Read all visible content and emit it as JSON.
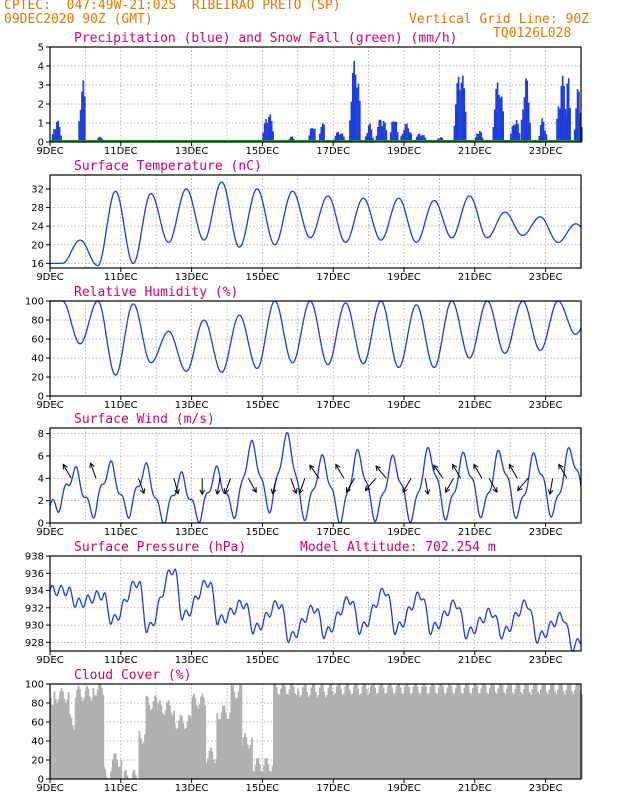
{
  "header": {
    "line1": "CPTEC:  047:49W-21:02S  RIBEIRAO PRETO (SP)",
    "line2_left": "09DEC2020 90Z (GMT)",
    "line2_right": "Vertical Grid Line: 90Z",
    "line3_right": "TQ0126L028"
  },
  "colors": {
    "blue": "#1c3cdc",
    "green": "#00a000",
    "gray": "#b0b0b0",
    "title": "#d6006e",
    "header": "#e07800"
  },
  "chart_data": [
    {
      "id": "precip",
      "type": "bar",
      "title": "Precipitation (blue) and Snow Fall (green) (mm/h)",
      "x_ticks": [
        "9DEC",
        "11DEC",
        "13DEC",
        "15DEC",
        "17DEC",
        "19DEC",
        "21DEC",
        "23DEC"
      ],
      "x_range_days": [
        0,
        15
      ],
      "ylim": [
        0,
        5
      ],
      "y_ticks": [
        "0",
        "1",
        "2",
        "3",
        "4",
        "5"
      ],
      "bursts": [
        [
          0.05,
          0.3,
          1.2
        ],
        [
          0.8,
          1.0,
          3.4
        ],
        [
          1.3,
          1.5,
          0.3
        ],
        [
          6.0,
          6.3,
          1.6
        ],
        [
          6.7,
          6.9,
          0.3
        ],
        [
          7.3,
          7.5,
          1.0
        ],
        [
          7.6,
          7.75,
          1.3
        ],
        [
          8.0,
          8.3,
          0.6
        ],
        [
          8.45,
          8.75,
          4.5
        ],
        [
          8.9,
          9.1,
          1.0
        ],
        [
          9.2,
          9.5,
          1.4
        ],
        [
          9.6,
          9.8,
          1.5
        ],
        [
          9.9,
          10.2,
          1.0
        ],
        [
          10.3,
          10.6,
          0.5
        ],
        [
          10.9,
          11.1,
          0.3
        ],
        [
          11.4,
          11.75,
          4.0
        ],
        [
          12.0,
          12.2,
          0.7
        ],
        [
          12.5,
          12.8,
          3.4
        ],
        [
          13.0,
          13.25,
          1.3
        ],
        [
          13.3,
          13.55,
          3.5
        ],
        [
          13.8,
          14.0,
          1.3
        ],
        [
          14.3,
          14.6,
          3.5
        ],
        [
          14.8,
          15.0,
          2.9
        ],
        [
          14.55,
          14.7,
          3.7
        ]
      ],
      "snow_line": 0
    },
    {
      "id": "temp",
      "type": "line",
      "title": "Surface Temperature (nC)",
      "x_ticks": [
        "9DEC",
        "11DEC",
        "13DEC",
        "15DEC",
        "17DEC",
        "19DEC",
        "21DEC",
        "23DEC"
      ],
      "ylim": [
        15,
        35
      ],
      "y_ticks": [
        "16",
        "20",
        "24",
        "28",
        "32"
      ],
      "y_tick_vals": [
        16,
        20,
        24,
        28,
        32
      ],
      "daily": [
        [
          16,
          21
        ],
        [
          15.5,
          31.5
        ],
        [
          16,
          31
        ],
        [
          20.5,
          32
        ],
        [
          21,
          33.5
        ],
        [
          19.5,
          32
        ],
        [
          20,
          31.5
        ],
        [
          21.5,
          30.5
        ],
        [
          20.5,
          30
        ],
        [
          21,
          30
        ],
        [
          20.5,
          29.5
        ],
        [
          21.5,
          30.5
        ],
        [
          21.5,
          27
        ],
        [
          22,
          26
        ],
        [
          20.5,
          24.5
        ],
        [
          21,
          23
        ]
      ]
    },
    {
      "id": "rh",
      "type": "line",
      "title": "Relative Humidity (%)",
      "x_ticks": [
        "9DEC",
        "11DEC",
        "13DEC",
        "15DEC",
        "17DEC",
        "19DEC",
        "21DEC",
        "23DEC"
      ],
      "ylim": [
        0,
        100
      ],
      "y_ticks": [
        "0",
        "20",
        "40",
        "60",
        "80",
        "100"
      ],
      "y_tick_vals": [
        0,
        20,
        40,
        60,
        80,
        100
      ],
      "daily": [
        [
          55,
          100
        ],
        [
          22,
          100
        ],
        [
          35,
          97
        ],
        [
          26,
          68
        ],
        [
          25,
          80
        ],
        [
          29,
          85
        ],
        [
          35,
          100
        ],
        [
          33,
          100
        ],
        [
          34,
          98
        ],
        [
          30,
          100
        ],
        [
          30,
          96
        ],
        [
          40,
          100
        ],
        [
          45,
          100
        ],
        [
          48,
          100
        ],
        [
          65,
          100
        ],
        [
          70,
          98
        ]
      ]
    },
    {
      "id": "wind",
      "type": "line",
      "title": "Surface Wind (m/s)",
      "x_ticks": [
        "9DEC",
        "11DEC",
        "13DEC",
        "15DEC",
        "17DEC",
        "19DEC",
        "21DEC",
        "23DEC"
      ],
      "ylim": [
        0,
        8.5
      ],
      "y_ticks": [
        "0",
        "2",
        "4",
        "6",
        "8"
      ],
      "y_tick_vals": [
        0,
        2,
        4,
        6,
        8
      ],
      "daily": [
        [
          1.5,
          4.5
        ],
        [
          1,
          5
        ],
        [
          1,
          4.8
        ],
        [
          0.4,
          4
        ],
        [
          0.6,
          4.5
        ],
        [
          1,
          6.8
        ],
        [
          1.5,
          7.5
        ],
        [
          0.8,
          5.5
        ],
        [
          0.5,
          6
        ],
        [
          0.7,
          5.5
        ],
        [
          0.6,
          6.2
        ],
        [
          0.8,
          5.8
        ],
        [
          1,
          6
        ],
        [
          0.9,
          5.8
        ],
        [
          1,
          6.3
        ],
        [
          1,
          5.8
        ]
      ],
      "arrows": [
        [
          0.6,
          -150
        ],
        [
          1.3,
          -160
        ],
        [
          2.5,
          20
        ],
        [
          3.5,
          15
        ],
        [
          4.3,
          0
        ],
        [
          4.8,
          -10
        ],
        [
          5.1,
          -20
        ],
        [
          5.6,
          30
        ],
        [
          6.4,
          -15
        ],
        [
          6.8,
          20
        ],
        [
          7.2,
          -20
        ],
        [
          7.6,
          -145
        ],
        [
          8.3,
          -150
        ],
        [
          8.6,
          -30
        ],
        [
          9.2,
          -40
        ],
        [
          9.5,
          -140
        ],
        [
          10.2,
          -30
        ],
        [
          10.6,
          10
        ],
        [
          11.1,
          -145
        ],
        [
          11.4,
          -30
        ],
        [
          11.6,
          -150
        ],
        [
          12.2,
          -150
        ],
        [
          12.4,
          30
        ],
        [
          13.2,
          -150
        ],
        [
          13.5,
          -40
        ],
        [
          14.2,
          -10
        ],
        [
          14.6,
          -150
        ]
      ]
    },
    {
      "id": "pres",
      "type": "line",
      "title": "Surface Pressure (hPa)",
      "subtitle": "Model Altitude: 702.254 m",
      "x_ticks": [
        "9DEC",
        "11DEC",
        "13DEC",
        "15DEC",
        "17DEC",
        "19DEC",
        "21DEC",
        "23DEC"
      ],
      "ylim": [
        927,
        938
      ],
      "y_ticks": [
        "928",
        "930",
        "932",
        "934",
        "936",
        "938"
      ],
      "y_tick_vals": [
        928,
        930,
        932,
        934,
        936,
        938
      ],
      "daily": [
        [
          932.5,
          934
        ],
        [
          930.5,
          933.5
        ],
        [
          929.5,
          935
        ],
        [
          931,
          936.5
        ],
        [
          930.5,
          935
        ],
        [
          929.5,
          932.5
        ],
        [
          928.5,
          932.5
        ],
        [
          929,
          932
        ],
        [
          929.5,
          933
        ],
        [
          929.5,
          934
        ],
        [
          929.5,
          933.5
        ],
        [
          929,
          932.5
        ],
        [
          929,
          931.5
        ],
        [
          928.5,
          932.5
        ],
        [
          927.5,
          931
        ],
        [
          927,
          931
        ]
      ]
    },
    {
      "id": "cloud",
      "type": "area",
      "title": "Cloud Cover (%)",
      "x_ticks": [
        "9DEC",
        "11DEC",
        "13DEC",
        "15DEC",
        "17DEC",
        "19DEC",
        "21DEC",
        "23DEC"
      ],
      "ylim": [
        0,
        100
      ],
      "y_ticks": [
        "0",
        "20",
        "40",
        "60",
        "80",
        "100"
      ],
      "y_tick_vals": [
        0,
        20,
        40,
        60,
        80,
        100
      ],
      "segments": [
        [
          0,
          0.1,
          85
        ],
        [
          0.1,
          0.5,
          88
        ],
        [
          0.5,
          0.7,
          60
        ],
        [
          0.7,
          1.2,
          90
        ],
        [
          1.2,
          1.5,
          95
        ],
        [
          1.5,
          1.75,
          5
        ],
        [
          1.75,
          2.0,
          20
        ],
        [
          2.0,
          2.5,
          2
        ],
        [
          2.5,
          2.7,
          45
        ],
        [
          2.7,
          3.0,
          80
        ],
        [
          3.0,
          3.5,
          75
        ],
        [
          3.5,
          4.0,
          60
        ],
        [
          4.0,
          4.4,
          82
        ],
        [
          4.4,
          4.7,
          25
        ],
        [
          4.7,
          5.1,
          70
        ],
        [
          5.1,
          5.4,
          92
        ],
        [
          5.4,
          5.7,
          40
        ],
        [
          5.7,
          6.3,
          15
        ],
        [
          6.3,
          7.0,
          96
        ],
        [
          7.0,
          8.0,
          94
        ],
        [
          8.0,
          9.0,
          96
        ],
        [
          9.0,
          15,
          97
        ]
      ]
    }
  ]
}
